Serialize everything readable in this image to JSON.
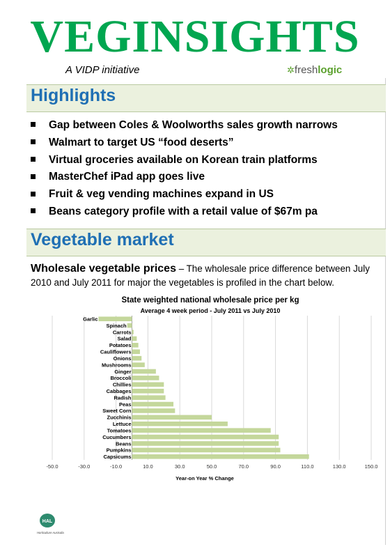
{
  "header": {
    "title": "VEGINSIGHTS",
    "subtitle": "A VIDP initiative",
    "logo_prefix": "fresh",
    "logo_strong": "logic"
  },
  "highlights": {
    "heading": "Highlights",
    "items": [
      "Gap between Coles & Woolworths sales growth narrows",
      "Walmart to target US “food deserts”",
      "Virtual groceries available on Korean train platforms",
      "MasterChef iPad app goes live",
      "Fruit & veg vending machines expand in US",
      "Beans category profile with a retail value of $67m pa"
    ]
  },
  "vegetable_market": {
    "heading": "Vegetable market",
    "para_lead": "Wholesale vegetable prices",
    "para_text": " – The wholesale price difference between July 2010 and July 2011 for major the vegetables is profiled in the chart below."
  },
  "chart_data": {
    "type": "bar",
    "orientation": "horizontal",
    "title": "State weighted national wholesale price per kg",
    "subtitle": "Average 4 week period - July 2011 vs July 2010",
    "xlabel": "Year-on Year % Change",
    "xlim": [
      -50,
      150
    ],
    "xticks": [
      "-50.0",
      "-30.0",
      "-10.0",
      "10.0",
      "30.0",
      "50.0",
      "70.0",
      "90.0",
      "110.0",
      "130.0",
      "150.0"
    ],
    "grid": true,
    "bar_color": "#c4d79b",
    "categories": [
      "Garlic",
      "Spinach",
      "Carrots",
      "Salad",
      "Potatoes",
      "Cauliflowers",
      "Onions",
      "Mushrooms",
      "Ginger",
      "Broccoli",
      "Chillies",
      "Cabbages",
      "Radish",
      "Peas",
      "Sweet Corn",
      "Zucchinis",
      "Lettuce",
      "Tomatoes",
      "Cucumbers",
      "Beans",
      "Pumpkins",
      "Capsicums"
    ],
    "values": [
      -21,
      -3,
      1,
      3,
      4,
      5,
      6,
      8,
      15,
      17,
      20,
      20,
      21,
      26,
      27,
      50,
      60,
      87,
      92,
      92,
      93,
      111
    ]
  },
  "footer": {
    "org_abbr": "HAL",
    "org_name": "Horticulture Australia"
  }
}
